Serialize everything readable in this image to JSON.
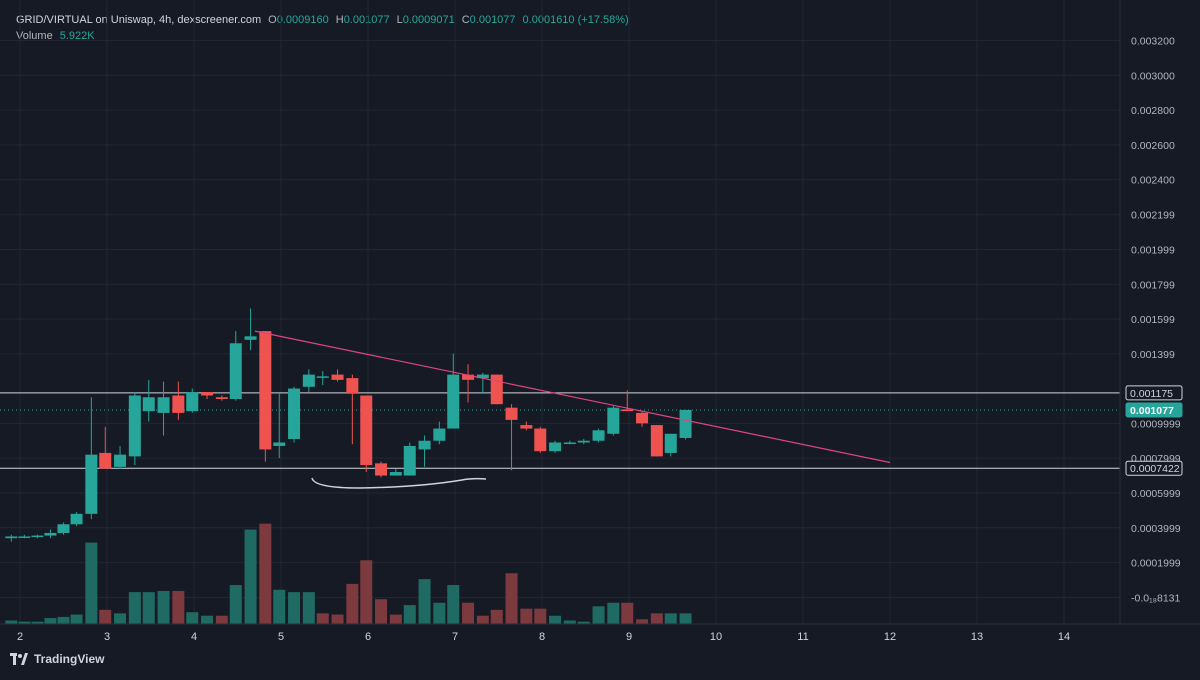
{
  "header": {
    "symbol": "GRID/VIRTUAL on Uniswap, 4h, dexscreener.com",
    "o_label": "O",
    "o_value": "0.0009160",
    "h_label": "H",
    "h_value": "0.001077",
    "l_label": "L",
    "l_value": "0.0009071",
    "c_label": "C",
    "c_value": "0.001077",
    "change": "0.0001610 (+17.58%)",
    "volume_label": "Volume",
    "volume_value": "5.922K"
  },
  "footer": {
    "brand": "TradingView"
  },
  "colors": {
    "background": "#161a25",
    "up": "#26a69a",
    "down": "#ef5350",
    "up_volume": "#1f6b63",
    "down_volume": "#7d3a3e",
    "trendline": "#e0457f",
    "grid": "#232632",
    "text": "#d1d4dc"
  },
  "chart_data": {
    "type": "candlestick",
    "title": "GRID/VIRTUAL on Uniswap, 4h, dexscreener.com",
    "x_ticks": [
      "2",
      "3",
      "4",
      "5",
      "6",
      "7",
      "8",
      "9",
      "10",
      "11",
      "12",
      "13",
      "14"
    ],
    "y_ticks": [
      "0.003200",
      "0.003000",
      "0.002800",
      "0.002600",
      "0.002400",
      "0.002199",
      "0.001999",
      "0.001799",
      "0.001599",
      "0.001399",
      "0.0009999",
      "0.0007999",
      "0.0005999",
      "0.0003999",
      "0.0001999",
      "-0.0₁₈8131"
    ],
    "y_tick_values": [
      0.0032,
      0.003,
      0.0028,
      0.0026,
      0.0024,
      0.002199,
      0.001999,
      0.001799,
      0.001599,
      0.001399,
      0.0009999,
      0.0007999,
      0.0005999,
      0.0003999,
      0.0001999,
      -8.131e-07
    ],
    "ylim": [
      -0.00016,
      0.00333
    ],
    "price_labels": [
      {
        "text": "0.001175",
        "value": 0.001175,
        "style": "outline"
      },
      {
        "text": "0.001077",
        "value": 0.001077,
        "style": "current"
      },
      {
        "text": "0.0007422",
        "value": 0.0007422,
        "style": "outline"
      }
    ],
    "horizontal_lines": [
      0.001175,
      0.0007422
    ],
    "current_price": 0.001077,
    "trendline": {
      "from": {
        "x": 4.7,
        "y": 0.00153
      },
      "to": {
        "x": 12.0,
        "y": 0.000775
      }
    },
    "candles": [
      {
        "x": 1.9,
        "o": 0.00034,
        "h": 0.00036,
        "l": 0.00032,
        "c": 0.00035
      },
      {
        "x": 2.05,
        "o": 0.00035,
        "h": 0.00036,
        "l": 0.00034,
        "c": 0.00035
      },
      {
        "x": 2.2,
        "o": 0.00035,
        "h": 0.00036,
        "l": 0.00034,
        "c": 0.000355
      },
      {
        "x": 2.35,
        "o": 0.000355,
        "h": 0.00039,
        "l": 0.00034,
        "c": 0.00037
      },
      {
        "x": 2.5,
        "o": 0.00037,
        "h": 0.00043,
        "l": 0.00036,
        "c": 0.00042
      },
      {
        "x": 2.65,
        "o": 0.00042,
        "h": 0.00049,
        "l": 0.00041,
        "c": 0.00048
      },
      {
        "x": 2.82,
        "o": 0.00048,
        "h": 0.00115,
        "l": 0.00045,
        "c": 0.00082
      },
      {
        "x": 2.98,
        "o": 0.00083,
        "h": 0.00098,
        "l": 0.00074,
        "c": 0.00074
      },
      {
        "x": 3.15,
        "o": 0.00075,
        "h": 0.00087,
        "l": 0.00074,
        "c": 0.00082
      },
      {
        "x": 3.32,
        "o": 0.00081,
        "h": 0.00118,
        "l": 0.00076,
        "c": 0.00116
      },
      {
        "x": 3.48,
        "o": 0.00107,
        "h": 0.00125,
        "l": 0.00101,
        "c": 0.00115
      },
      {
        "x": 3.65,
        "o": 0.00106,
        "h": 0.00124,
        "l": 0.00093,
        "c": 0.00115
      },
      {
        "x": 3.82,
        "o": 0.00116,
        "h": 0.00124,
        "l": 0.00102,
        "c": 0.00106
      },
      {
        "x": 3.98,
        "o": 0.00107,
        "h": 0.0012,
        "l": 0.00106,
        "c": 0.00118
      },
      {
        "x": 4.15,
        "o": 0.00118,
        "h": 0.00118,
        "l": 0.00114,
        "c": 0.00116
      },
      {
        "x": 4.32,
        "o": 0.00115,
        "h": 0.00116,
        "l": 0.00113,
        "c": 0.00114
      },
      {
        "x": 4.48,
        "o": 0.00114,
        "h": 0.00153,
        "l": 0.00113,
        "c": 0.00146
      },
      {
        "x": 4.65,
        "o": 0.00148,
        "h": 0.00166,
        "l": 0.00142,
        "c": 0.0015
      },
      {
        "x": 4.82,
        "o": 0.00153,
        "h": 0.00153,
        "l": 0.00078,
        "c": 0.00085
      },
      {
        "x": 4.98,
        "o": 0.00087,
        "h": 0.00117,
        "l": 0.0008,
        "c": 0.00089
      },
      {
        "x": 5.15,
        "o": 0.00091,
        "h": 0.00121,
        "l": 0.00089,
        "c": 0.0012
      },
      {
        "x": 5.32,
        "o": 0.00121,
        "h": 0.00131,
        "l": 0.00118,
        "c": 0.00128
      },
      {
        "x": 5.48,
        "o": 0.00127,
        "h": 0.0013,
        "l": 0.00122,
        "c": 0.00127
      },
      {
        "x": 5.65,
        "o": 0.00128,
        "h": 0.00131,
        "l": 0.00124,
        "c": 0.00125
      },
      {
        "x": 5.82,
        "o": 0.00126,
        "h": 0.00128,
        "l": 0.00088,
        "c": 0.00117
      },
      {
        "x": 5.98,
        "o": 0.00116,
        "h": 0.00116,
        "l": 0.00072,
        "c": 0.00076
      },
      {
        "x": 6.15,
        "o": 0.00077,
        "h": 0.00078,
        "l": 0.00069,
        "c": 0.0007
      },
      {
        "x": 6.32,
        "o": 0.0007,
        "h": 0.00074,
        "l": 0.0007,
        "c": 0.00072
      },
      {
        "x": 6.48,
        "o": 0.0007,
        "h": 0.00089,
        "l": 0.0007,
        "c": 0.00087
      },
      {
        "x": 6.65,
        "o": 0.00085,
        "h": 0.00093,
        "l": 0.00075,
        "c": 0.0009
      },
      {
        "x": 6.82,
        "o": 0.0009,
        "h": 0.00101,
        "l": 0.00088,
        "c": 0.00097
      },
      {
        "x": 6.98,
        "o": 0.00097,
        "h": 0.0014,
        "l": 0.00097,
        "c": 0.00128
      },
      {
        "x": 7.15,
        "o": 0.00128,
        "h": 0.00134,
        "l": 0.00112,
        "c": 0.00125
      },
      {
        "x": 7.32,
        "o": 0.00126,
        "h": 0.00129,
        "l": 0.00117,
        "c": 0.00128
      },
      {
        "x": 7.48,
        "o": 0.00128,
        "h": 0.00128,
        "l": 0.00111,
        "c": 0.00111
      },
      {
        "x": 7.65,
        "o": 0.00109,
        "h": 0.00111,
        "l": 0.00073,
        "c": 0.00102
      },
      {
        "x": 7.82,
        "o": 0.00099,
        "h": 0.00101,
        "l": 0.00096,
        "c": 0.00097
      },
      {
        "x": 7.98,
        "o": 0.00097,
        "h": 0.00098,
        "l": 0.00083,
        "c": 0.00084
      },
      {
        "x": 8.15,
        "o": 0.00084,
        "h": 0.0009,
        "l": 0.00083,
        "c": 0.00089
      },
      {
        "x": 8.32,
        "o": 0.00089,
        "h": 0.0009,
        "l": 0.00088,
        "c": 0.00089
      },
      {
        "x": 8.48,
        "o": 0.00089,
        "h": 0.00091,
        "l": 0.00088,
        "c": 0.0009
      },
      {
        "x": 8.65,
        "o": 0.0009,
        "h": 0.00097,
        "l": 0.00089,
        "c": 0.00096
      },
      {
        "x": 8.82,
        "o": 0.00094,
        "h": 0.0011,
        "l": 0.00093,
        "c": 0.00109
      },
      {
        "x": 8.98,
        "o": 0.00108,
        "h": 0.00119,
        "l": 0.00107,
        "c": 0.00107
      },
      {
        "x": 9.15,
        "o": 0.00106,
        "h": 0.00107,
        "l": 0.00098,
        "c": 0.001
      },
      {
        "x": 9.32,
        "o": 0.00099,
        "h": 0.00099,
        "l": 0.00081,
        "c": 0.00081
      },
      {
        "x": 9.48,
        "o": 0.00083,
        "h": 0.00094,
        "l": 0.00081,
        "c": 0.00094
      },
      {
        "x": 9.65,
        "o": 0.000916,
        "h": 0.001077,
        "l": 0.000907,
        "c": 0.001077
      }
    ],
    "volume": [
      {
        "x": 1.9,
        "v": 0.03,
        "up": true
      },
      {
        "x": 2.05,
        "v": 0.02,
        "up": true
      },
      {
        "x": 2.2,
        "v": 0.02,
        "up": true
      },
      {
        "x": 2.35,
        "v": 0.05,
        "up": true
      },
      {
        "x": 2.5,
        "v": 0.06,
        "up": true
      },
      {
        "x": 2.65,
        "v": 0.08,
        "up": true
      },
      {
        "x": 2.82,
        "v": 0.69,
        "up": true
      },
      {
        "x": 2.98,
        "v": 0.12,
        "up": false
      },
      {
        "x": 3.15,
        "v": 0.09,
        "up": true
      },
      {
        "x": 3.32,
        "v": 0.27,
        "up": true
      },
      {
        "x": 3.48,
        "v": 0.27,
        "up": true
      },
      {
        "x": 3.65,
        "v": 0.28,
        "up": true
      },
      {
        "x": 3.82,
        "v": 0.28,
        "up": false
      },
      {
        "x": 3.98,
        "v": 0.1,
        "up": true
      },
      {
        "x": 4.15,
        "v": 0.07,
        "up": true
      },
      {
        "x": 4.32,
        "v": 0.07,
        "up": false
      },
      {
        "x": 4.48,
        "v": 0.33,
        "up": true
      },
      {
        "x": 4.65,
        "v": 0.8,
        "up": true
      },
      {
        "x": 4.82,
        "v": 0.85,
        "up": false
      },
      {
        "x": 4.98,
        "v": 0.29,
        "up": true
      },
      {
        "x": 5.15,
        "v": 0.27,
        "up": true
      },
      {
        "x": 5.32,
        "v": 0.27,
        "up": true
      },
      {
        "x": 5.48,
        "v": 0.09,
        "up": false
      },
      {
        "x": 5.65,
        "v": 0.08,
        "up": false
      },
      {
        "x": 5.82,
        "v": 0.34,
        "up": false
      },
      {
        "x": 5.98,
        "v": 0.54,
        "up": false
      },
      {
        "x": 6.15,
        "v": 0.21,
        "up": false
      },
      {
        "x": 6.32,
        "v": 0.08,
        "up": false
      },
      {
        "x": 6.48,
        "v": 0.16,
        "up": true
      },
      {
        "x": 6.65,
        "v": 0.38,
        "up": true
      },
      {
        "x": 6.82,
        "v": 0.18,
        "up": true
      },
      {
        "x": 6.98,
        "v": 0.33,
        "up": true
      },
      {
        "x": 7.15,
        "v": 0.18,
        "up": false
      },
      {
        "x": 7.32,
        "v": 0.07,
        "up": false
      },
      {
        "x": 7.48,
        "v": 0.12,
        "up": false
      },
      {
        "x": 7.65,
        "v": 0.43,
        "up": false
      },
      {
        "x": 7.82,
        "v": 0.13,
        "up": false
      },
      {
        "x": 7.98,
        "v": 0.13,
        "up": false
      },
      {
        "x": 8.15,
        "v": 0.07,
        "up": true
      },
      {
        "x": 8.32,
        "v": 0.03,
        "up": true
      },
      {
        "x": 8.48,
        "v": 0.02,
        "up": true
      },
      {
        "x": 8.65,
        "v": 0.15,
        "up": true
      },
      {
        "x": 8.82,
        "v": 0.18,
        "up": true
      },
      {
        "x": 8.98,
        "v": 0.18,
        "up": false
      },
      {
        "x": 9.15,
        "v": 0.04,
        "up": false
      },
      {
        "x": 9.32,
        "v": 0.09,
        "up": false
      },
      {
        "x": 9.48,
        "v": 0.09,
        "up": true
      },
      {
        "x": 9.65,
        "v": 0.09,
        "up": true
      }
    ]
  }
}
